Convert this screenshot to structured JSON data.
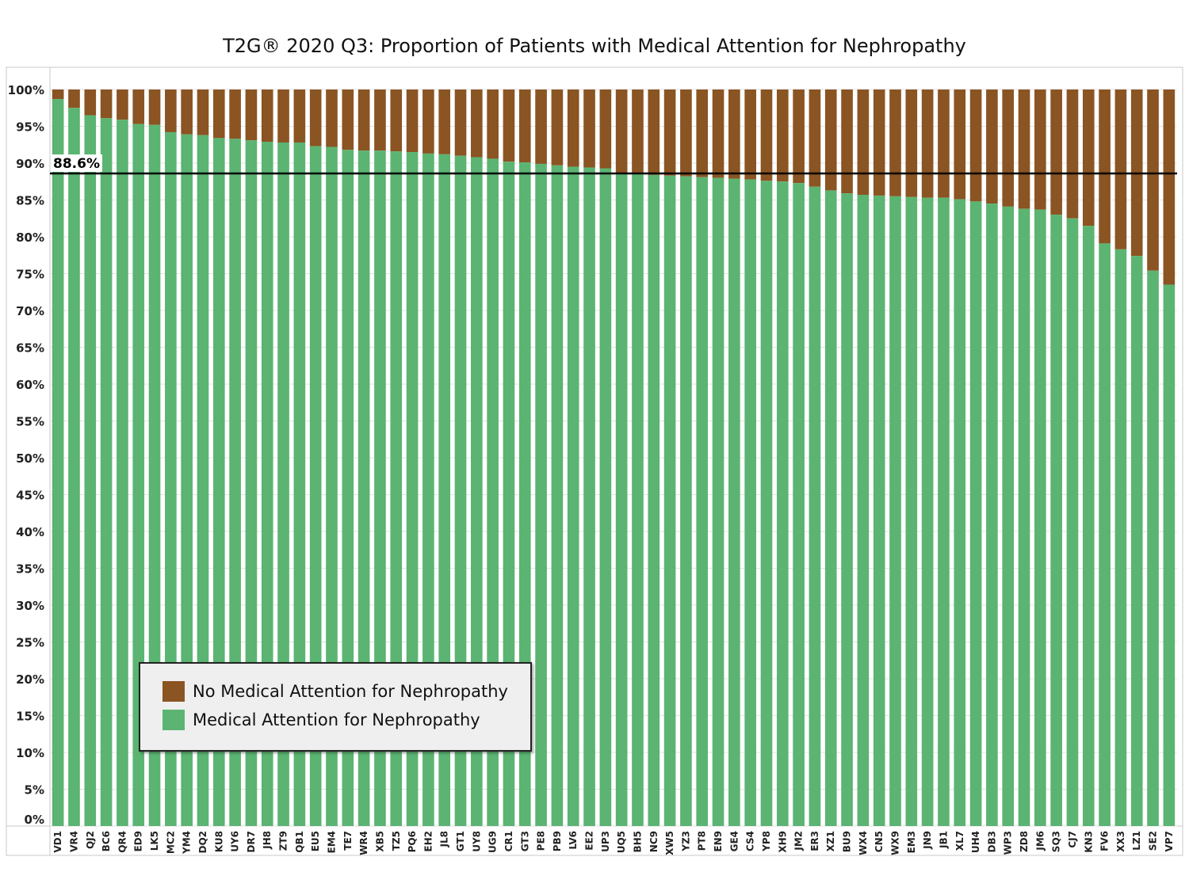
{
  "chart_data": {
    "type": "bar",
    "stacked": true,
    "title": "T2G® 2020 Q3: Proportion of Patients with Medical Attention for Nephropathy",
    "categories": [
      "VD1",
      "VR4",
      "QJ2",
      "BC6",
      "QR4",
      "ED9",
      "LK5",
      "MC2",
      "YM4",
      "DQ2",
      "KU8",
      "UY6",
      "DR7",
      "JH8",
      "ZT9",
      "QB1",
      "EU5",
      "EM4",
      "TE7",
      "WR4",
      "XB5",
      "TZ5",
      "PQ6",
      "EH2",
      "JL8",
      "GT1",
      "UY8",
      "UG9",
      "CR1",
      "GT3",
      "PE8",
      "PB9",
      "LV6",
      "EE2",
      "UP3",
      "UQ5",
      "BH5",
      "NC9",
      "XW5",
      "YZ3",
      "PT8",
      "EN9",
      "GE4",
      "CS4",
      "YP8",
      "XH9",
      "JM2",
      "ER3",
      "XZ1",
      "BU9",
      "WX4",
      "CN5",
      "WX9",
      "EM3",
      "JN9",
      "JB1",
      "XL7",
      "UH4",
      "DB3",
      "WP3",
      "ZD8",
      "JM6",
      "SQ3",
      "CJ7",
      "KN3",
      "FV6",
      "XX3",
      "LZ1",
      "SE2",
      "VP7"
    ],
    "series": [
      {
        "name": "Medical Attention for Nephropathy",
        "color": "#5bb471",
        "values": [
          98.7,
          97.5,
          96.5,
          96.1,
          95.9,
          95.3,
          95.2,
          94.2,
          93.9,
          93.8,
          93.4,
          93.3,
          93.1,
          92.9,
          92.8,
          92.8,
          92.3,
          92.2,
          91.8,
          91.7,
          91.7,
          91.6,
          91.5,
          91.3,
          91.2,
          91.0,
          90.8,
          90.6,
          90.2,
          90.1,
          89.9,
          89.7,
          89.5,
          89.4,
          89.3,
          88.5,
          88.5,
          88.4,
          88.3,
          88.2,
          88.1,
          88.0,
          87.9,
          87.8,
          87.6,
          87.5,
          87.3,
          86.8,
          86.3,
          85.9,
          85.7,
          85.6,
          85.5,
          85.4,
          85.3,
          85.3,
          85.1,
          84.8,
          84.5,
          84.1,
          83.8,
          83.7,
          83.0,
          82.5,
          81.5,
          79.1,
          78.3,
          77.4,
          75.4,
          73.5
        ]
      },
      {
        "name": "No Medical Attention for Nephropathy",
        "color": "#8b5423",
        "values": [
          1.3,
          2.5,
          3.5,
          3.9,
          4.1,
          4.7,
          4.8,
          5.8,
          6.1,
          6.2,
          6.6,
          6.7,
          6.9,
          7.1,
          7.2,
          7.2,
          7.7,
          7.8,
          8.2,
          8.3,
          8.3,
          8.4,
          8.5,
          8.7,
          8.8,
          9.0,
          9.2,
          9.4,
          9.8,
          9.9,
          10.1,
          10.3,
          10.5,
          10.6,
          10.7,
          11.5,
          11.5,
          11.6,
          11.7,
          11.8,
          11.9,
          12.0,
          12.1,
          12.2,
          12.4,
          12.5,
          12.7,
          13.2,
          13.7,
          14.1,
          14.3,
          14.4,
          14.5,
          14.6,
          14.7,
          14.7,
          14.9,
          15.2,
          15.5,
          15.9,
          16.2,
          16.3,
          17.0,
          17.5,
          18.5,
          20.9,
          21.7,
          22.6,
          24.6,
          26.5
        ]
      }
    ],
    "ylim": [
      0,
      100
    ],
    "yticks": [
      "0%",
      "5%",
      "10%",
      "15%",
      "20%",
      "25%",
      "30%",
      "35%",
      "40%",
      "45%",
      "50%",
      "55%",
      "60%",
      "65%",
      "70%",
      "75%",
      "80%",
      "85%",
      "90%",
      "95%",
      "100%"
    ],
    "reference_line": {
      "value": 88.6,
      "label": "88.6%"
    },
    "grid": true,
    "legend_position": "bottom-left"
  },
  "legend": {
    "items": [
      {
        "label": "No Medical Attention for Nephropathy",
        "color": "#8b5423"
      },
      {
        "label": "Medical Attention for Nephropathy",
        "color": "#5bb471"
      }
    ]
  }
}
